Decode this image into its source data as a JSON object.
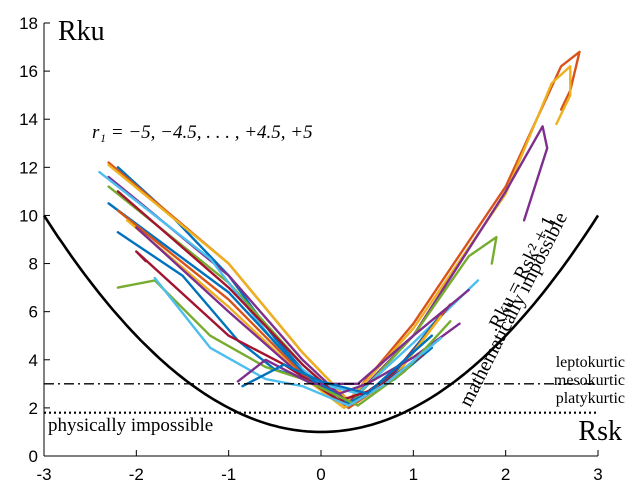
{
  "chart_data": {
    "type": "line",
    "xlabel": "Rsk",
    "ylabel": "Rku",
    "xlim": [
      -3,
      3
    ],
    "ylim": [
      0,
      18
    ],
    "xticks": [
      "-3",
      "-2",
      "-1",
      "0",
      "1",
      "2",
      "3"
    ],
    "yticks": [
      "0",
      "2",
      "4",
      "6",
      "8",
      "10",
      "12",
      "14",
      "16",
      "18"
    ],
    "grid": false,
    "annotations": {
      "family": "r₁ = −5, −4.5, . . . , +4.5, +5",
      "boundary_equation": "Rku = Rsk² + 1",
      "math_region": "mathematically impossible",
      "phys_region": "physically impossible",
      "leptokurtic": "leptokurtic",
      "mesokurtic": "mesokurtic",
      "platykurtic": "platykurtic"
    },
    "colors": {
      "boundary": "#000000",
      "leptokurtic": "#b0245a",
      "mesokurtic": "#000000",
      "platykurtic": "#4f8a1f"
    },
    "reference_lines": [
      {
        "kind": "dash-dot",
        "y": 3
      },
      {
        "kind": "dotted",
        "y": 1.8
      }
    ],
    "boundary_curve": {
      "formula": "y = x^2 + 1",
      "x_range": [
        -3,
        3
      ]
    },
    "series": [
      {
        "color": "#0072BD",
        "points": [
          [
            -2.2,
            12.0
          ],
          [
            -1.6,
            9.9
          ],
          [
            -1.0,
            7.5
          ],
          [
            -0.5,
            4.9
          ],
          [
            -0.2,
            3.6
          ],
          [
            0.0,
            3.0
          ],
          [
            0.1,
            2.9
          ]
        ]
      },
      {
        "color": "#D95319",
        "points": [
          [
            -2.3,
            12.2
          ],
          [
            -1.0,
            8.0
          ],
          [
            -0.2,
            4.3
          ],
          [
            0.3,
            2.3
          ],
          [
            1.0,
            5.5
          ],
          [
            2.0,
            11.2
          ],
          [
            2.6,
            16.2
          ],
          [
            2.8,
            16.8
          ],
          [
            2.7,
            15.2
          ],
          [
            2.6,
            14.4
          ]
        ]
      },
      {
        "color": "#EDB120",
        "points": [
          [
            -2.3,
            12.1
          ],
          [
            -1.0,
            8.0
          ],
          [
            -0.2,
            4.3
          ],
          [
            0.3,
            2.3
          ],
          [
            1.0,
            5.3
          ],
          [
            2.0,
            10.9
          ],
          [
            2.5,
            15.5
          ],
          [
            2.7,
            16.2
          ],
          [
            2.7,
            15.0
          ],
          [
            2.55,
            13.8
          ]
        ]
      },
      {
        "color": "#7E2F8E",
        "points": [
          [
            -2.3,
            11.6
          ],
          [
            -1.0,
            7.5
          ],
          [
            -0.2,
            4.0
          ],
          [
            0.3,
            2.2
          ],
          [
            1.0,
            5.0
          ],
          [
            2.0,
            11.0
          ],
          [
            2.4,
            13.7
          ],
          [
            2.45,
            12.8
          ],
          [
            2.2,
            9.8
          ]
        ]
      },
      {
        "color": "#77AC30",
        "points": [
          [
            -2.3,
            11.2
          ],
          [
            -1.0,
            7.2
          ],
          [
            -0.2,
            3.8
          ],
          [
            0.3,
            2.1
          ],
          [
            1.0,
            5.0
          ],
          [
            1.6,
            8.3
          ],
          [
            1.9,
            9.1
          ],
          [
            1.85,
            8.0
          ]
        ]
      },
      {
        "color": "#4DBEEE",
        "points": [
          [
            -2.4,
            11.8
          ],
          [
            -1.2,
            8.2
          ],
          [
            -0.4,
            4.2
          ],
          [
            0.0,
            3.0
          ],
          [
            0.4,
            2.6
          ],
          [
            1.0,
            4.7
          ],
          [
            1.7,
            7.3
          ]
        ]
      },
      {
        "color": "#A2142F",
        "points": [
          [
            -2.2,
            11.0
          ],
          [
            -1.0,
            7.0
          ],
          [
            -0.2,
            3.8
          ],
          [
            0.3,
            2.1
          ],
          [
            0.8,
            3.5
          ],
          [
            1.4,
            6.3
          ]
        ]
      },
      {
        "color": "#0072BD",
        "points": [
          [
            -2.3,
            10.5
          ],
          [
            -1.0,
            6.8
          ],
          [
            -0.2,
            3.5
          ],
          [
            0.3,
            2.0
          ],
          [
            0.8,
            3.4
          ],
          [
            1.3,
            5.9
          ]
        ]
      },
      {
        "color": "#D95319",
        "points": [
          [
            -2.2,
            10.2
          ],
          [
            -1.0,
            6.5
          ],
          [
            -0.2,
            3.4
          ],
          [
            0.3,
            2.0
          ],
          [
            0.8,
            3.3
          ],
          [
            1.35,
            6.1
          ]
        ]
      },
      {
        "color": "#EDB120",
        "points": [
          [
            -2.1,
            9.8
          ],
          [
            -1.0,
            6.2
          ],
          [
            -0.2,
            3.3
          ],
          [
            0.25,
            2.0
          ],
          [
            0.8,
            3.3
          ],
          [
            1.3,
            5.8
          ]
        ]
      },
      {
        "color": "#7E2F8E",
        "points": [
          [
            -2.0,
            9.5
          ],
          [
            -1.0,
            6.0
          ],
          [
            -0.2,
            3.3
          ],
          [
            0.2,
            2.6
          ],
          [
            0.5,
            3.0
          ],
          [
            1.0,
            4.1
          ],
          [
            1.5,
            5.5
          ]
        ]
      },
      {
        "color": "#0072BD",
        "points": [
          [
            -2.2,
            9.3
          ],
          [
            -1.5,
            7.5
          ],
          [
            -0.9,
            4.8
          ],
          [
            -0.5,
            3.6
          ],
          [
            0.0,
            3.0
          ],
          [
            0.3,
            2.2
          ],
          [
            0.8,
            3.2
          ],
          [
            1.2,
            4.5
          ]
        ]
      },
      {
        "color": "#A2142F",
        "points": [
          [
            -1.9,
            8.1
          ],
          [
            -2.0,
            8.5
          ],
          [
            -1.0,
            5.0
          ],
          [
            -0.4,
            3.8
          ],
          [
            0.2,
            2.3
          ],
          [
            0.6,
            2.8
          ],
          [
            1.1,
            4.2
          ]
        ]
      },
      {
        "color": "#77AC30",
        "points": [
          [
            -2.2,
            7.0
          ],
          [
            -1.8,
            7.3
          ],
          [
            -1.2,
            5.0
          ],
          [
            -0.6,
            3.7
          ],
          [
            -0.2,
            3.2
          ],
          [
            0.4,
            2.1
          ],
          [
            0.9,
            3.5
          ],
          [
            1.4,
            5.6
          ]
        ]
      },
      {
        "color": "#4DBEEE",
        "points": [
          [
            -1.8,
            7.4
          ],
          [
            -1.2,
            4.5
          ],
          [
            -0.6,
            3.2
          ],
          [
            -0.2,
            2.9
          ],
          [
            0.3,
            2.1
          ],
          [
            0.7,
            3.0
          ],
          [
            1.3,
            4.9
          ]
        ]
      },
      {
        "color": "#7E2F8E",
        "points": [
          [
            -0.9,
            3.1
          ],
          [
            -0.6,
            4.0
          ],
          [
            -0.1,
            3.0
          ],
          [
            0.4,
            3.0
          ],
          [
            1.0,
            5.0
          ],
          [
            1.6,
            6.9
          ]
        ]
      },
      {
        "color": "#0072BD",
        "points": [
          [
            -0.85,
            2.9
          ],
          [
            -0.4,
            3.8
          ],
          [
            0.0,
            3.1
          ],
          [
            0.5,
            2.6
          ],
          [
            1.2,
            5.0
          ]
        ]
      }
    ]
  }
}
